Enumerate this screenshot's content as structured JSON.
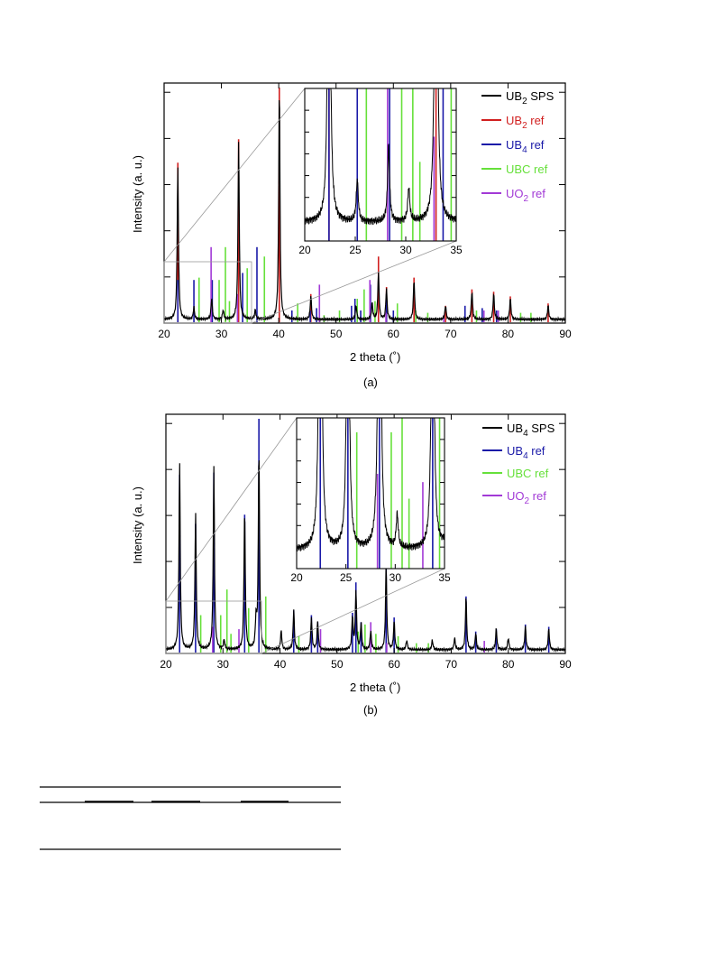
{
  "panel_a": {
    "caption": "(a)",
    "ylabel": "Intensity (a. u.)",
    "xlabel": "2 theta (˚)",
    "legend": [
      {
        "label": "UB",
        "sub": "2",
        "suffix": " SPS",
        "color": "#000000"
      },
      {
        "label": "UB",
        "sub": "2",
        "suffix": " ref",
        "color": "#d11f1f"
      },
      {
        "label": "UB",
        "sub": "4",
        "suffix": " ref",
        "color": "#1a1aa8"
      },
      {
        "label": "UBC ref",
        "sub": "",
        "suffix": "",
        "color": "#66e03a"
      },
      {
        "label": "UO",
        "sub": "2",
        "suffix": " ref",
        "color": "#a23ad6"
      }
    ]
  },
  "panel_b": {
    "caption": "(b)",
    "ylabel": "Intensity (a. u.)",
    "xlabel": "2 theta (˚)",
    "legend": [
      {
        "label": "UB",
        "sub": "4",
        "suffix": " SPS",
        "color": "#000000"
      },
      {
        "label": "UB",
        "sub": "4",
        "suffix": " ref",
        "color": "#1a1aa8"
      },
      {
        "label": "UBC ref",
        "sub": "",
        "suffix": "",
        "color": "#66e03a"
      },
      {
        "label": "UO",
        "sub": "2",
        "suffix": " ref",
        "color": "#a23ad6"
      }
    ]
  },
  "chart_data": [
    {
      "type": "line",
      "panel": "a",
      "xlabel": "2 theta (˚)",
      "ylabel": "Intensity (a. u.)",
      "xlim": [
        20,
        90
      ],
      "ylim": [
        0,
        1
      ],
      "xticks": [
        20,
        30,
        40,
        50,
        60,
        70,
        80,
        90
      ],
      "measured": {
        "name": "UB2 SPS",
        "color": "#000000",
        "peaks": [
          [
            22.4,
            0.65
          ],
          [
            25.2,
            0.05
          ],
          [
            28.3,
            0.09
          ],
          [
            30.3,
            0.04
          ],
          [
            33.0,
            0.76
          ],
          [
            35.9,
            0.04
          ],
          [
            40.1,
            1.0
          ],
          [
            45.6,
            0.1
          ],
          [
            53.5,
            0.06
          ],
          [
            56.3,
            0.07
          ],
          [
            57.4,
            0.2
          ],
          [
            58.8,
            0.13
          ],
          [
            63.6,
            0.17
          ],
          [
            69.1,
            0.06
          ],
          [
            73.7,
            0.12
          ],
          [
            77.5,
            0.11
          ],
          [
            80.4,
            0.09
          ],
          [
            87.0,
            0.06
          ]
        ]
      },
      "references": [
        {
          "name": "UB2 ref",
          "color": "#d11f1f",
          "lines": [
            [
              22.4,
              0.68
            ],
            [
              33.0,
              0.78
            ],
            [
              40.1,
              1.0
            ],
            [
              45.6,
              0.12
            ],
            [
              57.4,
              0.28
            ],
            [
              58.8,
              0.15
            ],
            [
              63.6,
              0.19
            ],
            [
              69.1,
              0.07
            ],
            [
              73.7,
              0.14
            ],
            [
              77.5,
              0.13
            ],
            [
              80.4,
              0.11
            ],
            [
              87.0,
              0.08
            ]
          ]
        },
        {
          "name": "UB4 ref",
          "color": "#1a1aa8",
          "lines": [
            [
              22.4,
              0.18
            ],
            [
              25.2,
              0.18
            ],
            [
              28.4,
              0.18
            ],
            [
              33.7,
              0.21
            ],
            [
              36.2,
              0.32
            ],
            [
              42.3,
              0.05
            ],
            [
              45.5,
              0.05
            ],
            [
              46.6,
              0.06
            ],
            [
              52.7,
              0.07
            ],
            [
              53.3,
              0.1
            ],
            [
              54.3,
              0.05
            ],
            [
              56.0,
              0.16
            ],
            [
              58.8,
              0.12
            ],
            [
              60.0,
              0.05
            ],
            [
              72.5,
              0.07
            ],
            [
              75.5,
              0.06
            ],
            [
              78.0,
              0.05
            ]
          ]
        },
        {
          "name": "UBC ref",
          "color": "#66e03a",
          "lines": [
            [
              26.1,
              0.19
            ],
            [
              29.6,
              0.18
            ],
            [
              30.7,
              0.32
            ],
            [
              31.4,
              0.09
            ],
            [
              34.5,
              0.23
            ],
            [
              37.5,
              0.28
            ],
            [
              43.3,
              0.08
            ],
            [
              47.9,
              0.03
            ],
            [
              50.6,
              0.05
            ],
            [
              53.7,
              0.1
            ],
            [
              54.9,
              0.14
            ],
            [
              56.8,
              0.09
            ],
            [
              60.7,
              0.08
            ],
            [
              63.9,
              0.05
            ],
            [
              66.0,
              0.04
            ],
            [
              74.5,
              0.05
            ],
            [
              82.2,
              0.04
            ],
            [
              84.0,
              0.04
            ]
          ]
        },
        {
          "name": "UO2 ref",
          "color": "#a23ad6",
          "lines": [
            [
              28.2,
              0.32
            ],
            [
              32.8,
              0.12
            ],
            [
              47.1,
              0.16
            ],
            [
              55.9,
              0.18
            ],
            [
              58.7,
              0.04
            ],
            [
              68.8,
              0.03
            ],
            [
              75.8,
              0.05
            ],
            [
              78.3,
              0.05
            ]
          ]
        }
      ]
    },
    {
      "type": "line",
      "panel": "a-inset",
      "xlim": [
        20,
        35
      ],
      "xticks": [
        20,
        25,
        30,
        35
      ],
      "description_of_data": "zoom of main panel region 2θ = 20–35"
    },
    {
      "type": "line",
      "panel": "b",
      "xlabel": "2 theta (˚)",
      "ylabel": "Intensity (a. u.)",
      "xlim": [
        20,
        90
      ],
      "ylim": [
        0,
        1
      ],
      "xticks": [
        20,
        30,
        40,
        50,
        60,
        70,
        80,
        90
      ],
      "measured": {
        "name": "UB4 SPS",
        "color": "#000000",
        "peaks": [
          [
            22.4,
            0.8
          ],
          [
            25.2,
            0.58
          ],
          [
            28.4,
            0.78
          ],
          [
            30.2,
            0.04
          ],
          [
            33.8,
            0.6
          ],
          [
            35.8,
            0.12
          ],
          [
            36.3,
            0.86
          ],
          [
            40.2,
            0.08
          ],
          [
            42.4,
            0.17
          ],
          [
            45.5,
            0.14
          ],
          [
            46.6,
            0.12
          ],
          [
            52.7,
            0.14
          ],
          [
            53.3,
            0.25
          ],
          [
            54.2,
            0.11
          ],
          [
            55.9,
            0.08
          ],
          [
            58.6,
            0.36
          ],
          [
            60.0,
            0.12
          ],
          [
            62.2,
            0.04
          ],
          [
            66.7,
            0.04
          ],
          [
            70.6,
            0.05
          ],
          [
            72.6,
            0.23
          ],
          [
            74.3,
            0.07
          ],
          [
            77.9,
            0.09
          ],
          [
            80.0,
            0.05
          ],
          [
            83.0,
            0.1
          ],
          [
            87.1,
            0.09
          ]
        ]
      },
      "references": [
        {
          "name": "UB4 ref",
          "color": "#1a1aa8",
          "lines": [
            [
              22.4,
              0.76
            ],
            [
              25.2,
              0.55
            ],
            [
              28.4,
              0.77
            ],
            [
              33.8,
              0.59
            ],
            [
              36.3,
              1.0
            ],
            [
              42.4,
              0.18
            ],
            [
              45.5,
              0.16
            ],
            [
              46.6,
              0.13
            ],
            [
              52.7,
              0.17
            ],
            [
              53.3,
              0.3
            ],
            [
              54.2,
              0.13
            ],
            [
              58.6,
              0.45
            ],
            [
              60.0,
              0.15
            ],
            [
              72.6,
              0.24
            ],
            [
              74.3,
              0.09
            ],
            [
              77.9,
              0.1
            ],
            [
              83.0,
              0.12
            ],
            [
              87.1,
              0.11
            ]
          ]
        },
        {
          "name": "UBC ref",
          "color": "#66e03a",
          "lines": [
            [
              26.1,
              0.16
            ],
            [
              29.6,
              0.16
            ],
            [
              30.7,
              0.27
            ],
            [
              31.4,
              0.08
            ],
            [
              34.5,
              0.19
            ],
            [
              37.5,
              0.24
            ],
            [
              43.3,
              0.07
            ],
            [
              53.7,
              0.09
            ],
            [
              54.9,
              0.12
            ],
            [
              56.8,
              0.08
            ],
            [
              60.7,
              0.07
            ],
            [
              63.9,
              0.04
            ],
            [
              66.0,
              0.04
            ]
          ]
        },
        {
          "name": "UO2 ref",
          "color": "#a23ad6",
          "lines": [
            [
              28.2,
              0.11
            ],
            [
              32.8,
              0.1
            ],
            [
              47.1,
              0.1
            ],
            [
              55.9,
              0.13
            ],
            [
              58.7,
              0.04
            ],
            [
              75.8,
              0.05
            ]
          ]
        }
      ]
    },
    {
      "type": "line",
      "panel": "b-inset",
      "xlim": [
        20,
        35
      ],
      "xticks": [
        20,
        25,
        30,
        35
      ],
      "description_of_data": "zoom of main panel region 2θ = 20–35"
    }
  ]
}
